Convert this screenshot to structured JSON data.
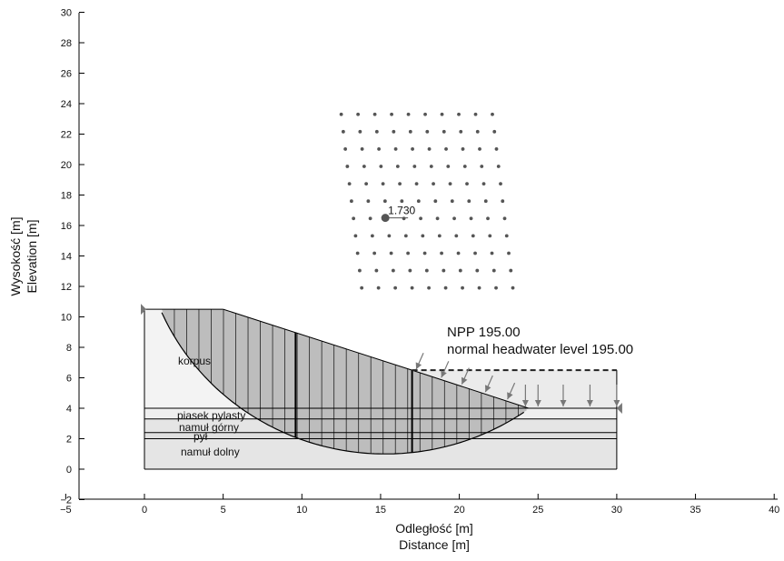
{
  "chart_data": {
    "type": "diagram",
    "xlabel": [
      "Odległość [m]",
      "Distance [m]"
    ],
    "ylabel": [
      "Wysokość [m]",
      "Elevation [m]"
    ],
    "xlim": [
      -5,
      40
    ],
    "ylim": [
      -2,
      30
    ],
    "xticks": [
      -5,
      0,
      5,
      10,
      15,
      20,
      25,
      30,
      35,
      40
    ],
    "yticks": [
      -2,
      0,
      2,
      4,
      6,
      8,
      10,
      12,
      14,
      16,
      18,
      20,
      22,
      24,
      26,
      28,
      30
    ],
    "xtick_labels": [
      "−5",
      "0",
      "5",
      "10",
      "15",
      "20",
      "25",
      "30",
      "35",
      "40"
    ],
    "ytick_labels": [
      "−2",
      "0",
      "2",
      "4",
      "6",
      "8",
      "10",
      "12",
      "14",
      "16",
      "18",
      "20",
      "22",
      "24",
      "26",
      "28",
      "30"
    ],
    "water_level": {
      "elevation": 6.5,
      "x_start": 17,
      "x_end": 30,
      "labels": [
        "NPP 195.00",
        "normal headwater level 195.00"
      ]
    },
    "layers": [
      {
        "name": "korpus"
      },
      {
        "name": "piasek pylasty"
      },
      {
        "name": "namuł górny"
      },
      {
        "name": "pył"
      },
      {
        "name": "namuł dolny"
      }
    ],
    "critical_center": {
      "x": 15.3,
      "y": 16.5,
      "factor_of_safety": "1.730"
    },
    "center_grid": {
      "rows": 11,
      "cols": 10,
      "top_left": [
        12.5,
        23.3
      ],
      "top_right": [
        22.1,
        23.3
      ],
      "bottom_left": [
        13.8,
        11.9
      ],
      "bottom_right": [
        23.4,
        11.9
      ]
    }
  }
}
